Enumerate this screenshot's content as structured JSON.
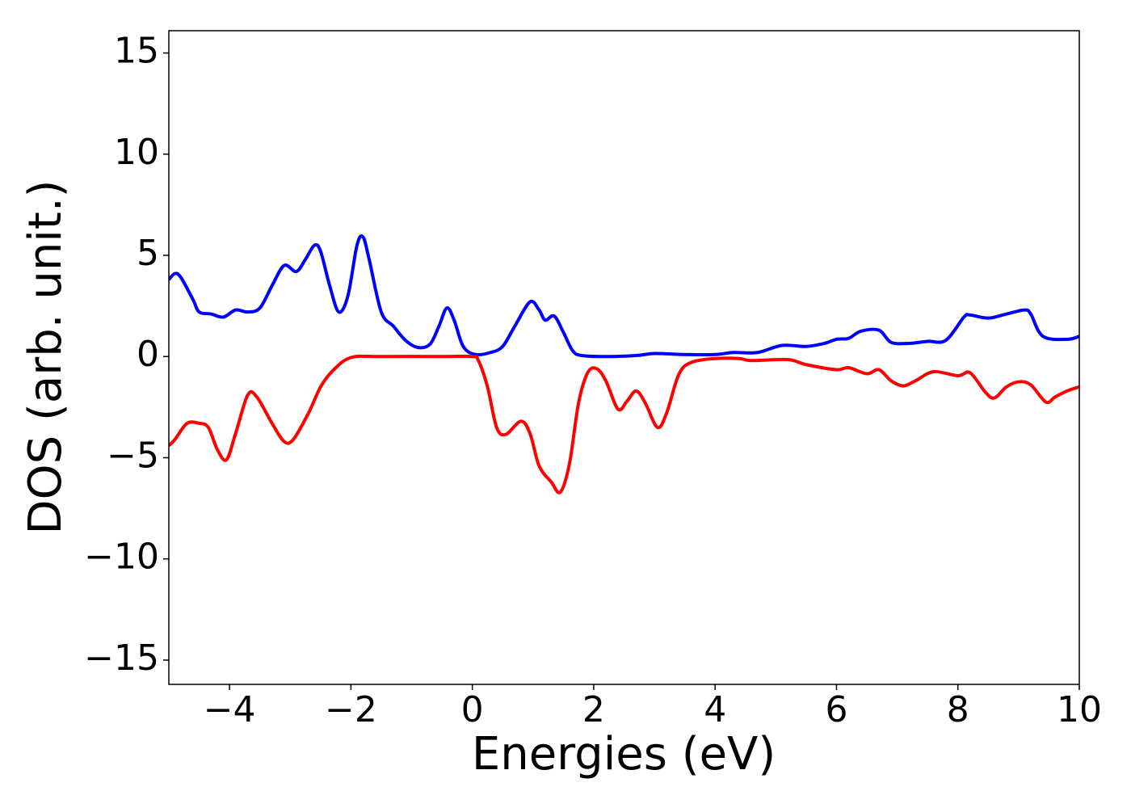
{
  "chart_data": {
    "type": "line",
    "x_label": "Energies (eV)",
    "y_label": "DOS (arb. unit.)",
    "xlim": [
      -5,
      10
    ],
    "ylim": [
      -16.2,
      16.1
    ],
    "xticks": [
      {
        "value": -4,
        "label": "−4"
      },
      {
        "value": -2,
        "label": "−2"
      },
      0,
      2,
      4,
      6,
      8,
      10
    ],
    "yticks": [
      {
        "value": -15,
        "label": "−15"
      },
      {
        "value": -10,
        "label": "−10"
      },
      {
        "value": -5,
        "label": "−5"
      },
      0,
      5,
      10,
      15
    ],
    "grid": false,
    "series": [
      {
        "color": "#0000ff",
        "x": [
          -5,
          -4.9,
          -4.8,
          -4.6,
          -4.5,
          -4.3,
          -4.1,
          -3.9,
          -3.7,
          -3.5,
          -3.3,
          -3.1,
          -2.9,
          -2.75,
          -2.6,
          -2.5,
          -2.35,
          -2.2,
          -2.05,
          -1.9,
          -1.8,
          -1.7,
          -1.5,
          -1.3,
          -1.1,
          -0.9,
          -0.7,
          -0.55,
          -0.42,
          -0.3,
          -0.15,
          0.05,
          0.3,
          0.5,
          0.7,
          0.95,
          1.1,
          1.2,
          1.35,
          1.5,
          1.65,
          1.8,
          2.2,
          2.7,
          3.0,
          3.5,
          4.0,
          4.3,
          4.7,
          5.1,
          5.5,
          5.8,
          6.0,
          6.2,
          6.4,
          6.7,
          6.9,
          7.2,
          7.5,
          7.8,
          8.1,
          8.2,
          8.5,
          8.8,
          9.1,
          9.2,
          9.4,
          9.8,
          10
        ],
        "values": [
          3.8,
          4.1,
          3.9,
          2.8,
          2.2,
          2.1,
          1.95,
          2.3,
          2.2,
          2.4,
          3.5,
          4.5,
          4.2,
          4.8,
          5.5,
          5.2,
          3.5,
          2.2,
          3.0,
          5.5,
          5.9,
          4.8,
          2.2,
          1.5,
          0.8,
          0.45,
          0.6,
          1.5,
          2.4,
          1.8,
          0.5,
          0.1,
          0.2,
          0.5,
          1.5,
          2.7,
          2.3,
          1.8,
          2.0,
          1.2,
          0.3,
          0.05,
          0.0,
          0.05,
          0.15,
          0.1,
          0.1,
          0.2,
          0.2,
          0.55,
          0.5,
          0.65,
          0.85,
          0.9,
          1.25,
          1.3,
          0.7,
          0.65,
          0.75,
          0.8,
          1.95,
          2.05,
          1.9,
          2.1,
          2.3,
          2.1,
          1.0,
          0.85,
          1.0
        ]
      },
      {
        "color": "#ff0000",
        "x": [
          -5,
          -4.9,
          -4.7,
          -4.5,
          -4.35,
          -4.2,
          -4.05,
          -3.9,
          -3.7,
          -3.55,
          -3.3,
          -3.1,
          -2.95,
          -2.7,
          -2.5,
          -2.3,
          -2.0,
          -1.5,
          -0.5,
          0,
          0.1,
          0.25,
          0.4,
          0.55,
          0.8,
          0.95,
          1.1,
          1.3,
          1.45,
          1.6,
          1.75,
          1.9,
          2.05,
          2.2,
          2.4,
          2.55,
          2.7,
          2.85,
          3.05,
          3.2,
          3.4,
          3.6,
          4.0,
          4.4,
          4.6,
          5.2,
          5.5,
          6.0,
          6.2,
          6.5,
          6.7,
          6.9,
          7.1,
          7.3,
          7.6,
          8.0,
          8.2,
          8.45,
          8.6,
          8.8,
          9.0,
          9.2,
          9.45,
          9.6,
          9.8,
          10
        ],
        "values": [
          -4.4,
          -4.1,
          -3.3,
          -3.3,
          -3.5,
          -4.6,
          -5.1,
          -3.8,
          -1.9,
          -2.0,
          -3.3,
          -4.2,
          -4.1,
          -2.8,
          -1.5,
          -0.7,
          -0.05,
          0,
          0,
          0,
          -0.2,
          -1.5,
          -3.5,
          -3.85,
          -3.2,
          -3.8,
          -5.4,
          -6.2,
          -6.7,
          -5.3,
          -2.3,
          -0.8,
          -0.6,
          -1.2,
          -2.6,
          -2.2,
          -1.7,
          -2.3,
          -3.5,
          -2.8,
          -0.9,
          -0.3,
          -0.1,
          -0.1,
          -0.2,
          -0.15,
          -0.4,
          -0.65,
          -0.55,
          -0.85,
          -0.65,
          -1.2,
          -1.45,
          -1.2,
          -0.75,
          -0.95,
          -0.8,
          -1.75,
          -2.05,
          -1.5,
          -1.25,
          -1.4,
          -2.25,
          -2.0,
          -1.7,
          -1.5
        ]
      }
    ]
  }
}
